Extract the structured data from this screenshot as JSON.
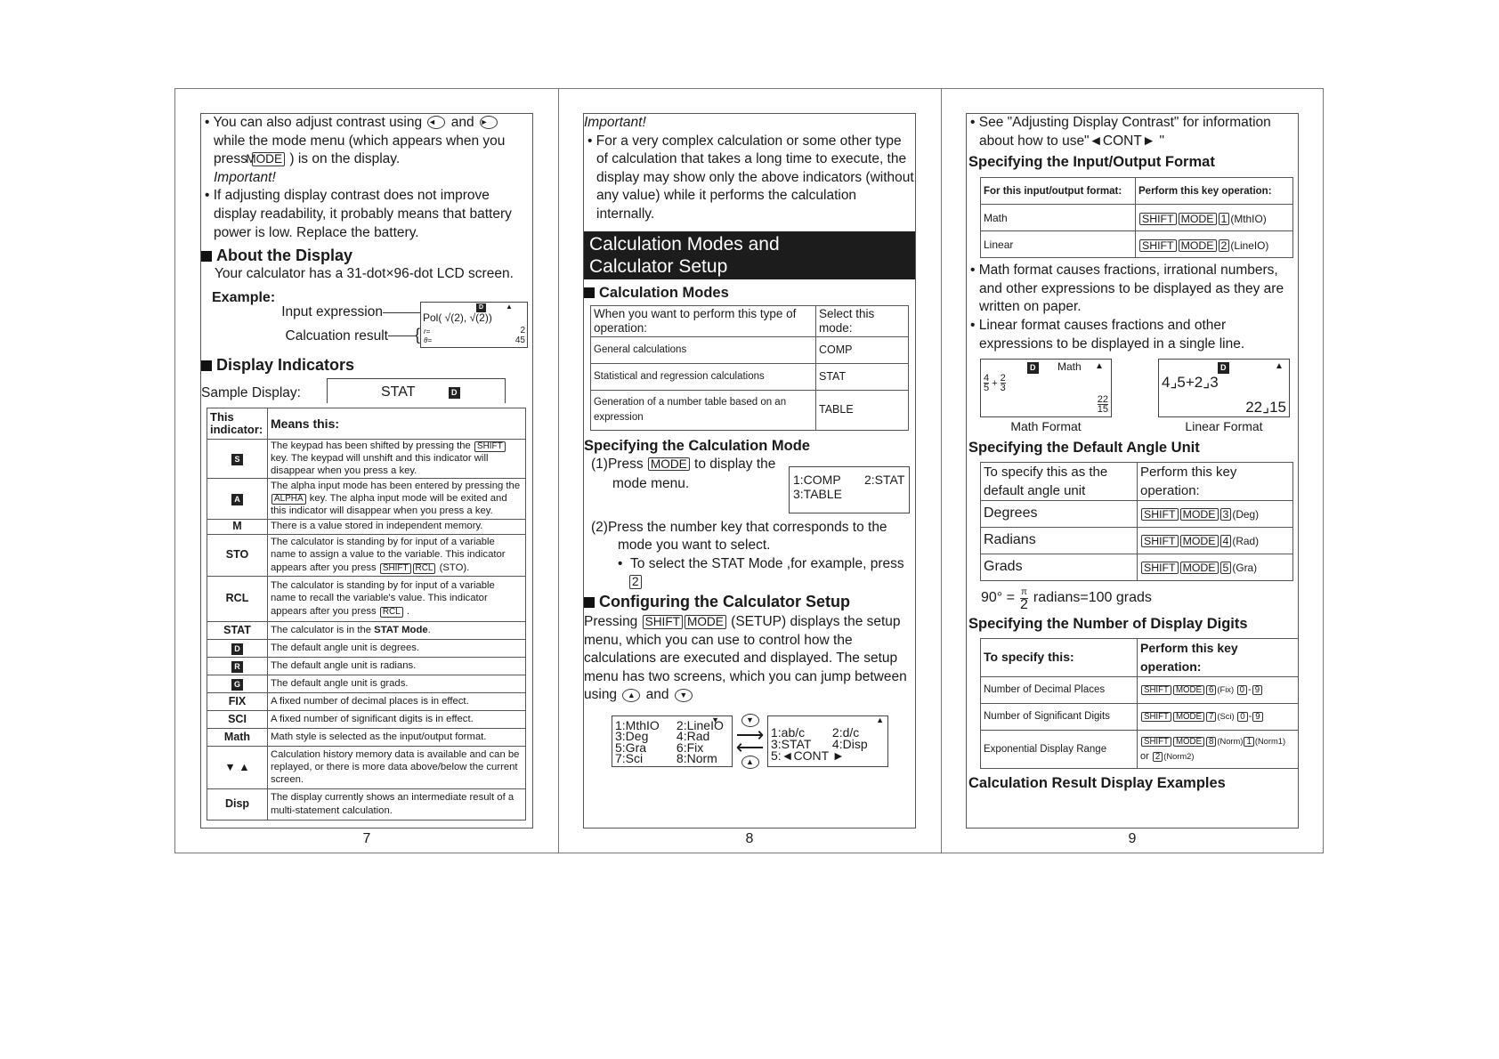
{
  "page1": {
    "bullet1": [
      "You can also adjust contrast using ",
      {
        "i": "left"
      },
      " and ",
      {
        "i": "right"
      },
      " while the mode menu (which appears when you press ",
      {
        "k": "MODE"
      },
      " ) is on the display."
    ],
    "important": "Important!",
    "bullet2": "If adjusting  display contrast does not improve display readability, it probably means that battery power is low. Replace the battery.",
    "about_heading": "About the Display",
    "about_text": "Your calculator has a 31-dot×96-dot LCD screen.",
    "example_label": "Example:",
    "input_label": "Input expression",
    "result_label": "Calcuation result",
    "example_lcd": {
      "indicator": "D",
      "arrow": "▲",
      "expr": "Pol( √(2), √(2))",
      "r_label": "r=",
      "theta_label": "θ=",
      "r_value": "2",
      "theta_value": "45"
    },
    "indicators_heading": "Display Indicators",
    "sample_label": "Sample Display:",
    "sample_lcd": {
      "text": "STAT",
      "indicator": "D"
    },
    "table": {
      "headers": [
        "This indicator:",
        "Means this:"
      ],
      "rows": [
        {
          "ind": "S",
          "boxed": true,
          "desc": [
            "The keypad has  been shifted by pressing the ",
            {
              "k": "SHIFT"
            },
            " key. The keypad will unshift and this indicator will disappear when you press a key."
          ]
        },
        {
          "ind": "A",
          "boxed": true,
          "desc": [
            "The alpha input mode has been entered by pressing  the ",
            {
              "k": "ALPHA"
            },
            " key. The alpha input mode will be exited and this indicator will disappear when you press a key."
          ]
        },
        {
          "ind": "M",
          "desc": [
            "There is a value stored in independent memory."
          ]
        },
        {
          "ind": "STO",
          "desc": [
            "The calculator is standing by for input of a variable name to assign a value to the variable. This indicator appears after you press ",
            {
              "k": "SHIFT"
            },
            {
              "k": "RCL"
            },
            " (STO)."
          ]
        },
        {
          "ind": "RCL",
          "desc": [
            "The calculator is standing by for input of a variable name to recall the variable's value. This indicator appears after you press ",
            {
              "k": "RCL"
            },
            " ."
          ]
        },
        {
          "ind": "STAT",
          "desc": [
            "The calculator is in the ",
            {
              "b": "STAT Mode"
            },
            "."
          ]
        },
        {
          "ind": "D",
          "boxed": true,
          "desc": [
            "The default angle unit is degrees."
          ]
        },
        {
          "ind": "R",
          "boxed": true,
          "desc": [
            "The default angle unit is radians."
          ]
        },
        {
          "ind": "G",
          "boxed": true,
          "desc": [
            "The default angle unit is grads."
          ]
        },
        {
          "ind": "FIX",
          "desc": [
            "A fixed number of decimal places is in effect."
          ]
        },
        {
          "ind": "SCI",
          "desc": [
            "A fixed number of significant digits is in effect."
          ]
        },
        {
          "ind": "Math",
          "desc": [
            "Math style is selected as the input/output format."
          ]
        },
        {
          "ind": "▼ ▲",
          "desc": [
            "Calculation history memory data is available and can be replayed, or there is more data above/below the current screen."
          ]
        },
        {
          "ind": "Disp",
          "desc": [
            "The display currently shows an intermediate result of a multi-statement calculation."
          ]
        }
      ]
    },
    "page_number": "7"
  },
  "page2": {
    "important": "Important!",
    "bullet": "For a very complex calculation or some other type of calculation that takes a long time to execute, the display may show only the above indicators (without any value) while it performs the calculation internally.",
    "banner_line1": "Calculation Modes and",
    "banner_line2": "Calculator  Setup",
    "modes_heading": "Calculation Modes",
    "modes_table": {
      "headers": [
        "When you want to perform this type of operation:",
        "Select this mode:"
      ],
      "rows": [
        [
          "General calculations",
          "COMP"
        ],
        [
          "Statistical and regression calculations",
          "STAT"
        ],
        [
          "Generation of a number table based on an expression",
          "TABLE"
        ]
      ]
    },
    "specify_heading": "Specifying the Calculation Mode",
    "step1": [
      "(1)Press  ",
      {
        "k": "MODE"
      },
      "  to display the"
    ],
    "step1_cont": "mode menu.",
    "mode_lcd": {
      "item1": "1:COMP",
      "item2": "2:STAT",
      "item3": "3:TABLE"
    },
    "step2": "(2)Press the number key that corresponds to the",
    "step2_cont": "mode you want to select.",
    "step2_bullet": "To select the STAT Mode ,for example, press",
    "step2_key": "2",
    "setup_heading": "Configuring the Calculator Setup",
    "setup_text": [
      "Pressing ",
      {
        "k": "SHIFT"
      },
      {
        "k": "MODE"
      },
      " (SETUP) displays the setup menu, which you can use to control how the calculations are executed and displayed. The setup menu has two screens, which you can jump between using ",
      {
        "i": "up"
      },
      " and ",
      {
        "i": "down"
      }
    ],
    "setup_lcd1": {
      "rows": [
        [
          "1:MthIO",
          "2:LineIO"
        ],
        [
          "3:Deg",
          "4:Rad"
        ],
        [
          "5:Gra",
          "6:Fix"
        ],
        [
          "7:Sci",
          "8:Norm"
        ]
      ],
      "arrow": "▼"
    },
    "setup_lcd2": {
      "rows": [
        [
          "1:ab/c",
          "2:d/c"
        ],
        [
          "3:STAT",
          "4:Disp"
        ],
        [
          "5:◄CONT ►",
          ""
        ]
      ],
      "arrow": "▲"
    },
    "page_number": "8"
  },
  "page3": {
    "see_text": "See \"Adjusting Display Contrast\" for information about how to use\"◄CONT► \"",
    "io_heading": "Specifying the Input/Output Format",
    "io_table": {
      "headers": [
        "For this input/output format:",
        "Perform this key operation:"
      ],
      "rows": [
        {
          "label": "Math",
          "op": [
            {
              "k": "SHIFT"
            },
            {
              "k": "MODE"
            },
            {
              "k": "1"
            },
            {
              "s": "(MthIO)"
            }
          ]
        },
        {
          "label": "Linear",
          "op": [
            {
              "k": "SHIFT"
            },
            {
              "k": "MODE"
            },
            {
              "k": "2"
            },
            {
              "s": "(LineIO)"
            }
          ]
        }
      ]
    },
    "bullet_math": "Math format causes fractions, irrational numbers, and other expressions to be displayed as they are written on paper.",
    "bullet_linear": "Linear format causes fractions and other expressions to be displayed in a single line.",
    "math_lcd": {
      "indicator": "D",
      "mode": "Math",
      "arrow": "▲",
      "n1": "4",
      "d1": "5",
      "op": "+",
      "n2": "2",
      "d2": "3",
      "rn": "22",
      "rd": "15",
      "caption": "Math Format"
    },
    "linear_lcd": {
      "indicator": "D",
      "arrow": "▲",
      "expr": "4⌟5+2⌟3",
      "result": "22⌟15",
      "caption": "Linear Format"
    },
    "angle_heading": "Specifying the Default Angle Unit",
    "angle_table": {
      "headers": [
        "To specify this as the default angle unit",
        "Perform this key operation:"
      ],
      "rows": [
        {
          "label": "Degrees",
          "op": [
            {
              "k": "SHIFT"
            },
            {
              "k": "MODE"
            },
            {
              "k": "3"
            },
            {
              "s": "(Deg)"
            }
          ]
        },
        {
          "label": "Radians",
          "op": [
            {
              "k": "SHIFT"
            },
            {
              "k": "MODE"
            },
            {
              "k": "4"
            },
            {
              "s": "(Rad)"
            }
          ]
        },
        {
          "label": "Grads",
          "op": [
            {
              "k": "SHIFT"
            },
            {
              "k": "MODE"
            },
            {
              "k": "5"
            },
            {
              "s": "(Gra)"
            }
          ]
        }
      ]
    },
    "angle_eq": {
      "left": "90° =",
      "num": "π",
      "den": "2",
      "right": "radians=100 grads"
    },
    "digits_heading": "Specifying the Number of Display Digits",
    "digits_table": {
      "headers": [
        "To specify this:",
        "Perform this key operation:"
      ],
      "rows": [
        {
          "label": "Number of Decimal Places",
          "op": [
            {
              "k": "SHIFT"
            },
            {
              "k": "MODE"
            },
            {
              "k": "6"
            },
            {
              "s": "(Fix) "
            },
            {
              "k": "0"
            },
            "-",
            {
              "k": "9"
            }
          ]
        },
        {
          "label": "Number of Significant Digits",
          "op": [
            {
              "k": "SHIFT"
            },
            {
              "k": "MODE"
            },
            {
              "k": "7"
            },
            {
              "s": "(Sci) "
            },
            {
              "k": "0"
            },
            "-",
            {
              "k": "9"
            }
          ]
        },
        {
          "label": "Exponential Display Range",
          "op": [
            {
              "k": "SHIFT"
            },
            {
              "k": "MODE"
            },
            {
              "k": "8"
            },
            {
              "s": "(Norm)"
            },
            {
              "k": "1"
            },
            {
              "s": "(Norm1)"
            },
            " or ",
            {
              "k": "2"
            },
            {
              "s": "(Norm2)"
            }
          ]
        }
      ]
    },
    "results_heading": "Calculation Result Display Examples",
    "page_number": "9"
  }
}
